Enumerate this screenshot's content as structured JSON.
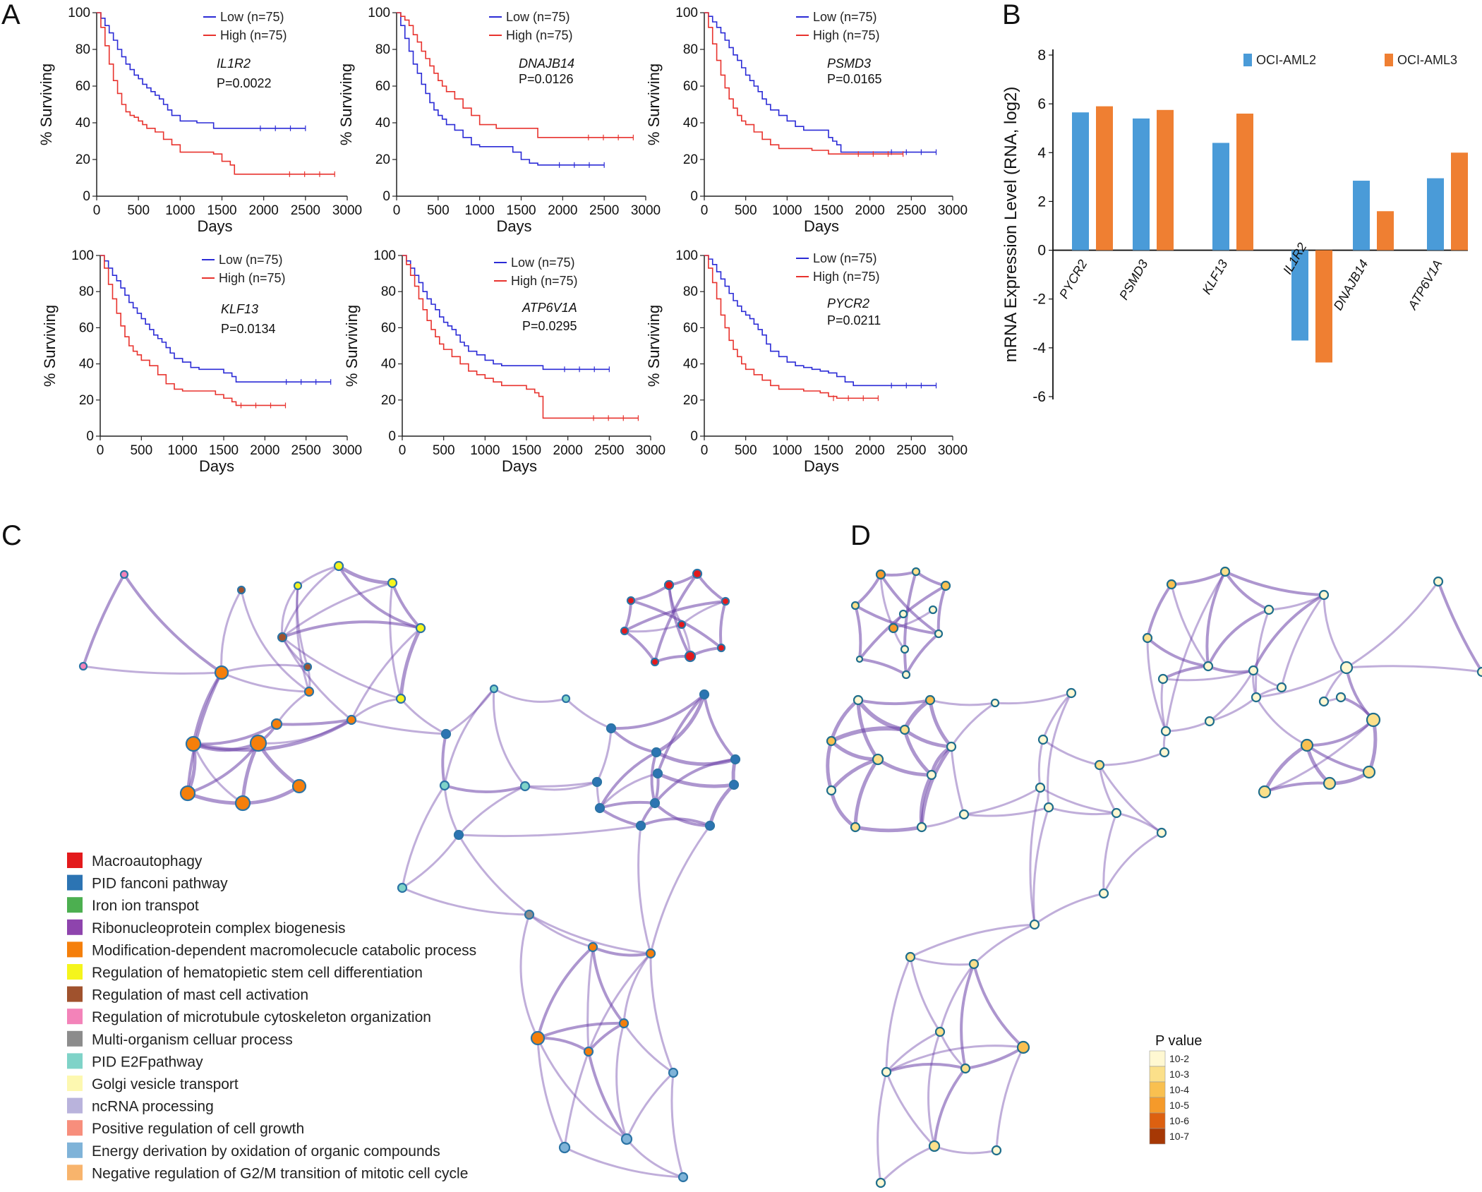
{
  "panels": {
    "A": "A",
    "B": "B",
    "C": "C",
    "D": "D"
  },
  "km_common": {
    "ylabel": "% Surviving",
    "xlabel": "Days",
    "x_ticks": [
      "0",
      "500",
      "1000",
      "1500",
      "2000",
      "2500",
      "3000"
    ],
    "y_ticks": [
      "0",
      "20",
      "40",
      "60",
      "80",
      "100"
    ],
    "low_label": "Low (n=75)",
    "high_label": "High (n=75)",
    "low_color": "#2b2bd6",
    "high_color": "#e8332e"
  },
  "chart_data": [
    {
      "type": "line",
      "gene": "IL1R2",
      "pvalue": "P=0.0022",
      "xlim": [
        0,
        3000
      ],
      "ylim": [
        0,
        100
      ],
      "series": [
        {
          "name": "Low (n=75)",
          "x": [
            0,
            50,
            100,
            150,
            200,
            250,
            300,
            350,
            400,
            450,
            500,
            550,
            600,
            650,
            700,
            750,
            800,
            850,
            900,
            1000,
            1100,
            1200,
            1300,
            1400,
            1500,
            1700,
            1900,
            2100,
            2300,
            2500
          ],
          "y": [
            100,
            97,
            93,
            89,
            85,
            80,
            76,
            72,
            69,
            66,
            64,
            61,
            59,
            57,
            55,
            53,
            50,
            47,
            44,
            41,
            41,
            40,
            40,
            37,
            37,
            37,
            37,
            37,
            37,
            37
          ]
        },
        {
          "name": "High (n=75)",
          "x": [
            0,
            50,
            100,
            150,
            200,
            250,
            300,
            350,
            400,
            450,
            500,
            550,
            600,
            700,
            800,
            900,
            1000,
            1200,
            1400,
            1500,
            1600,
            1650,
            1700,
            2000,
            2400,
            2850
          ],
          "y": [
            100,
            92,
            82,
            72,
            63,
            56,
            50,
            46,
            44,
            43,
            41,
            39,
            37,
            35,
            31,
            28,
            24,
            24,
            23,
            19,
            17,
            12,
            12,
            12,
            12,
            12
          ]
        }
      ]
    },
    {
      "type": "line",
      "gene": "DNAJB14",
      "pvalue": "P=0.0126",
      "xlim": [
        0,
        3000
      ],
      "ylim": [
        0,
        100
      ],
      "series": [
        {
          "name": "Low (n=75)",
          "x": [
            0,
            50,
            100,
            150,
            200,
            250,
            300,
            350,
            400,
            450,
            500,
            550,
            600,
            700,
            800,
            900,
            1000,
            1200,
            1400,
            1500,
            1600,
            1700,
            2000,
            2500
          ],
          "y": [
            100,
            93,
            86,
            79,
            72,
            67,
            61,
            56,
            51,
            47,
            44,
            42,
            39,
            36,
            32,
            28,
            27,
            27,
            24,
            20,
            18,
            17,
            17,
            17
          ]
        },
        {
          "name": "High (n=75)",
          "x": [
            0,
            50,
            100,
            150,
            200,
            250,
            300,
            350,
            400,
            450,
            500,
            550,
            600,
            700,
            800,
            900,
            1000,
            1200,
            1500,
            1600,
            1700,
            2000,
            2400,
            2850
          ],
          "y": [
            100,
            98,
            96,
            93,
            88,
            84,
            79,
            75,
            71,
            67,
            63,
            60,
            57,
            53,
            48,
            44,
            39,
            37,
            37,
            37,
            32,
            32,
            32,
            32
          ]
        }
      ]
    },
    {
      "type": "line",
      "gene": "PSMD3",
      "pvalue": "P=0.0165",
      "xlim": [
        0,
        3000
      ],
      "ylim": [
        0,
        100
      ],
      "series": [
        {
          "name": "Low (n=75)",
          "x": [
            0,
            50,
            100,
            150,
            200,
            250,
            300,
            350,
            400,
            450,
            500,
            550,
            600,
            650,
            700,
            750,
            800,
            900,
            1000,
            1100,
            1200,
            1300,
            1400,
            1500,
            1550,
            1600,
            1650,
            1750,
            1800,
            2000,
            2400,
            2800
          ],
          "y": [
            100,
            98,
            95,
            92,
            89,
            85,
            81,
            77,
            74,
            70,
            66,
            63,
            60,
            57,
            53,
            50,
            47,
            44,
            41,
            38,
            36,
            36,
            36,
            32,
            30,
            28,
            24,
            24,
            24,
            24,
            24,
            24
          ]
        },
        {
          "name": "High (n=75)",
          "x": [
            0,
            50,
            100,
            150,
            200,
            250,
            300,
            350,
            400,
            450,
            500,
            600,
            700,
            800,
            900,
            1000,
            1100,
            1300,
            1400,
            1500,
            1700,
            1900,
            2100,
            2400
          ],
          "y": [
            100,
            92,
            83,
            74,
            66,
            59,
            53,
            48,
            44,
            41,
            39,
            35,
            31,
            28,
            26,
            26,
            26,
            25,
            25,
            23,
            23,
            23,
            23,
            23
          ]
        }
      ]
    },
    {
      "type": "line",
      "gene": "KLF13",
      "pvalue": "P=0.0134",
      "xlim": [
        0,
        3000
      ],
      "ylim": [
        0,
        100
      ],
      "series": [
        {
          "name": "Low (n=75)",
          "x": [
            0,
            50,
            100,
            150,
            200,
            250,
            300,
            350,
            400,
            450,
            500,
            550,
            600,
            650,
            700,
            750,
            800,
            850,
            900,
            1000,
            1100,
            1200,
            1300,
            1500,
            1600,
            1650,
            1700,
            2000,
            2400,
            2800
          ],
          "y": [
            100,
            97,
            93,
            89,
            86,
            82,
            78,
            74,
            71,
            68,
            65,
            62,
            59,
            56,
            54,
            52,
            49,
            46,
            43,
            41,
            38,
            37,
            37,
            35,
            33,
            30,
            30,
            30,
            30,
            30
          ]
        },
        {
          "name": "High (n=75)",
          "x": [
            0,
            50,
            100,
            150,
            200,
            250,
            300,
            350,
            400,
            450,
            500,
            600,
            700,
            800,
            900,
            1000,
            1200,
            1300,
            1400,
            1500,
            1600,
            1650,
            1700,
            2000,
            2250
          ],
          "y": [
            100,
            93,
            84,
            76,
            68,
            61,
            55,
            50,
            47,
            45,
            42,
            39,
            34,
            29,
            26,
            25,
            25,
            25,
            23,
            21,
            19,
            17,
            17,
            17,
            17
          ]
        }
      ]
    },
    {
      "type": "line",
      "gene": "ATP6V1A",
      "pvalue": "P=0.0295",
      "xlim": [
        0,
        3000
      ],
      "ylim": [
        0,
        100
      ],
      "series": [
        {
          "name": "Low (n=75)",
          "x": [
            0,
            50,
            100,
            150,
            200,
            250,
            300,
            350,
            400,
            450,
            500,
            550,
            600,
            650,
            700,
            750,
            800,
            900,
            1000,
            1100,
            1200,
            1400,
            1700,
            2000,
            2500
          ],
          "y": [
            100,
            97,
            93,
            89,
            85,
            80,
            76,
            73,
            70,
            66,
            63,
            61,
            59,
            56,
            52,
            50,
            47,
            45,
            42,
            40,
            39,
            39,
            37,
            37,
            37
          ]
        },
        {
          "name": "High (n=75)",
          "x": [
            0,
            50,
            100,
            150,
            200,
            250,
            300,
            350,
            400,
            450,
            500,
            600,
            700,
            800,
            900,
            1000,
            1100,
            1200,
            1300,
            1400,
            1500,
            1600,
            1650,
            1700,
            2000,
            2400,
            2850
          ],
          "y": [
            100,
            95,
            89,
            83,
            76,
            70,
            64,
            59,
            55,
            51,
            48,
            44,
            40,
            36,
            34,
            32,
            30,
            28,
            28,
            28,
            26,
            24,
            22,
            10,
            10,
            10,
            10
          ]
        }
      ]
    },
    {
      "type": "line",
      "gene": "PYCR2",
      "pvalue": "P=0.0211",
      "xlim": [
        0,
        3000
      ],
      "ylim": [
        0,
        100
      ],
      "series": [
        {
          "name": "Low (n=75)",
          "x": [
            0,
            50,
            100,
            150,
            200,
            250,
            300,
            350,
            400,
            450,
            500,
            550,
            600,
            650,
            700,
            750,
            800,
            900,
            1000,
            1100,
            1200,
            1300,
            1400,
            1500,
            1600,
            1700,
            1800,
            2000,
            2400,
            2800
          ],
          "y": [
            100,
            98,
            95,
            91,
            87,
            83,
            79,
            75,
            72,
            69,
            67,
            65,
            62,
            59,
            56,
            51,
            47,
            44,
            41,
            39,
            38,
            37,
            36,
            35,
            33,
            30,
            28,
            28,
            28,
            28
          ]
        },
        {
          "name": "High (n=75)",
          "x": [
            0,
            50,
            100,
            150,
            200,
            250,
            300,
            350,
            400,
            450,
            500,
            600,
            700,
            800,
            900,
            1000,
            1200,
            1400,
            1500,
            1600,
            1700,
            1900,
            2100
          ],
          "y": [
            100,
            93,
            85,
            76,
            67,
            60,
            53,
            48,
            44,
            40,
            37,
            34,
            31,
            28,
            26,
            26,
            25,
            24,
            22,
            21,
            21,
            21,
            21
          ]
        }
      ]
    },
    {
      "type": "bar",
      "ylabel": "mRNA Expression Level (RNA, log2)",
      "ylim": [
        -6,
        8
      ],
      "y_ticks": [
        "8",
        "6",
        "4",
        "2",
        "0",
        "-2",
        "-4",
        "-6"
      ],
      "categories": [
        "PYCR2",
        "PSMD3",
        "KLF13",
        "IL1R2",
        "DNAJB14",
        "ATP6V1A"
      ],
      "series": [
        {
          "name": "OCI-AML2",
          "color": "#4a9bd8",
          "values": [
            5.65,
            5.4,
            4.4,
            -3.7,
            2.85,
            2.95
          ]
        },
        {
          "name": "OCI-AML3",
          "color": "#ef7f32",
          "values": [
            5.9,
            5.75,
            5.6,
            -4.6,
            1.6,
            4.0
          ]
        }
      ]
    }
  ],
  "network_legend": {
    "items": [
      {
        "label": "Macroautophagy",
        "color": "#e31a1c"
      },
      {
        "label": "PID fanconi pathway",
        "color": "#2c74b3"
      },
      {
        "label": "Iron ion transpot",
        "color": "#4caf50"
      },
      {
        "label": "Ribonucleoprotein complex biogenesis",
        "color": "#8e44ad"
      },
      {
        "label": "Modification-dependent macromolecucle catabolic process",
        "color": "#f57f0b"
      },
      {
        "label": "Regulation of hematopietic stem cell differentiation",
        "color": "#f5f51c"
      },
      {
        "label": "Regulation of mast cell activation",
        "color": "#a0522d"
      },
      {
        "label": "Regulation of microtubule cytoskeleton organization",
        "color": "#f383b9"
      },
      {
        "label": "Multi-organism celluar process",
        "color": "#8c8c8c"
      },
      {
        "label": "PID E2Fpathway",
        "color": "#7fd3c8"
      },
      {
        "label": "Golgi vesicle transport",
        "color": "#fdf8b0"
      },
      {
        "label": "ncRNA processing",
        "color": "#b9b3dc"
      },
      {
        "label": "Positive regulation of cell growth",
        "color": "#f78e7c"
      },
      {
        "label": "Energy derivation by oxidation of organic compounds",
        "color": "#7fb3d8"
      },
      {
        "label": "Negative regulation of G2/M transition of mitotic cell cycle",
        "color": "#f8b46c"
      }
    ]
  },
  "pvalue_legend": {
    "title": "P value",
    "levels": [
      {
        "label": "10-2",
        "color": "#fff8d2"
      },
      {
        "label": "10-3",
        "color": "#fbe08a"
      },
      {
        "label": "10-4",
        "color": "#f9c050"
      },
      {
        "label": "10-5",
        "color": "#f59a2a"
      },
      {
        "label": "10-6",
        "color": "#dd6010"
      },
      {
        "label": "10-7",
        "color": "#a63805"
      }
    ]
  },
  "edge_color": "#6a3fa8"
}
